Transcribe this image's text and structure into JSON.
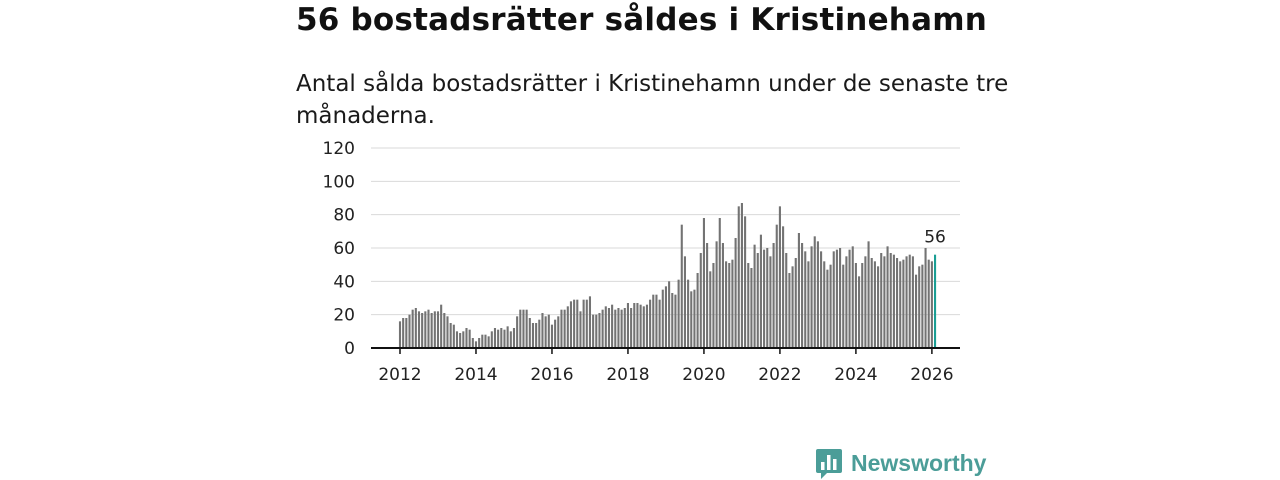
{
  "header": {
    "title": "56 bostadsrätter såldes i Kristinehamn",
    "subtitle": "Antal sålda bostadsrätter i Kristinehamn under de senaste tre månaderna."
  },
  "brand": {
    "name": "Newsworthy",
    "icon": "newsworthy-logo-icon"
  },
  "colors": {
    "bar": "#737373",
    "highlight": "#1a9e94",
    "grid": "#d9d9d9",
    "axis": "#111111",
    "brand": "#4b9d98"
  },
  "chart_data": {
    "type": "bar",
    "title": "56 bostadsrätter såldes i Kristinehamn",
    "xlabel": "",
    "ylabel": "",
    "ylim": [
      0,
      120
    ],
    "yticks": [
      0,
      20,
      40,
      60,
      80,
      100,
      120
    ],
    "xticks": [
      "2012",
      "2014",
      "2016",
      "2018",
      "2020",
      "2022",
      "2024",
      "2026"
    ],
    "x_start": "2012-01",
    "highlight_label": "56",
    "grid": true,
    "values": [
      16,
      18,
      18,
      20,
      23,
      24,
      22,
      21,
      22,
      23,
      21,
      22,
      22,
      26,
      21,
      19,
      15,
      14,
      10,
      9,
      10,
      12,
      11,
      6,
      4,
      6,
      8,
      8,
      7,
      10,
      12,
      11,
      12,
      11,
      13,
      10,
      12,
      19,
      23,
      23,
      23,
      18,
      15,
      15,
      17,
      21,
      19,
      20,
      14,
      17,
      19,
      23,
      23,
      25,
      28,
      29,
      29,
      22,
      29,
      29,
      31,
      20,
      20,
      21,
      23,
      25,
      24,
      26,
      23,
      24,
      23,
      24,
      27,
      24,
      27,
      27,
      26,
      25,
      26,
      29,
      32,
      32,
      29,
      35,
      37,
      40,
      33,
      32,
      41,
      74,
      55,
      41,
      34,
      35,
      45,
      57,
      78,
      63,
      46,
      51,
      64,
      78,
      63,
      52,
      51,
      53,
      66,
      85,
      87,
      79,
      51,
      48,
      62,
      57,
      68,
      59,
      60,
      55,
      63,
      74,
      85,
      73,
      57,
      45,
      49,
      54,
      69,
      63,
      58,
      52,
      61,
      67,
      64,
      58,
      52,
      47,
      50,
      58,
      59,
      60,
      50,
      55,
      59,
      61,
      51,
      43,
      51,
      55,
      64,
      54,
      52,
      49,
      57,
      55,
      61,
      57,
      56,
      54,
      52,
      53,
      55,
      56,
      55,
      44,
      49,
      50,
      60,
      53,
      52,
      56
    ]
  }
}
